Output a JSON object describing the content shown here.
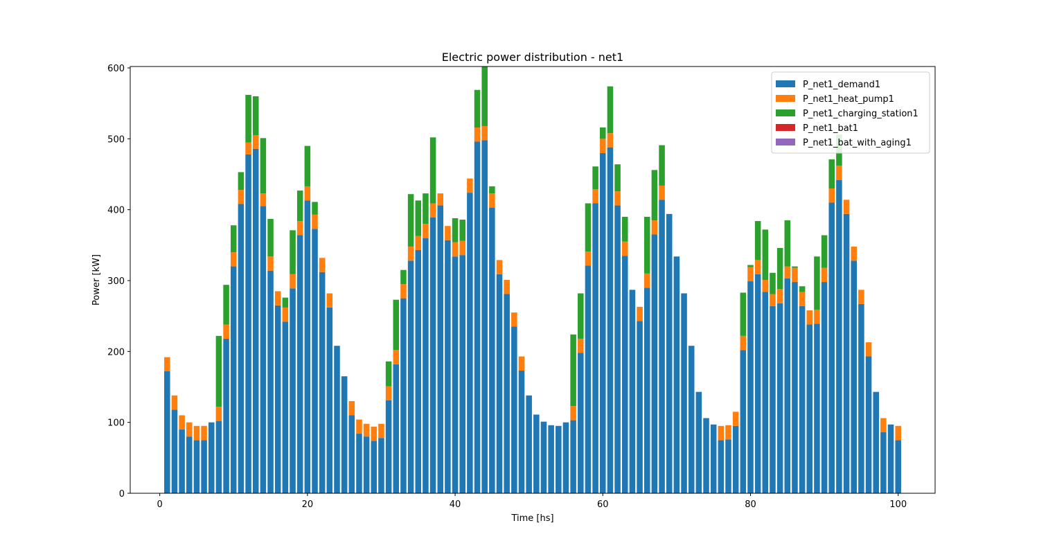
{
  "chart_data": {
    "type": "bar",
    "stacked": true,
    "title": "Electric power distribution - net1",
    "xlabel": "Time [hs]",
    "ylabel": "Power [kW]",
    "xlim": [
      -4,
      105
    ],
    "ylim": [
      0,
      602
    ],
    "xticks": [
      0,
      20,
      40,
      60,
      80,
      100
    ],
    "yticks": [
      0,
      100,
      200,
      300,
      400,
      500,
      600
    ],
    "legend_position": "top-right",
    "grid": false,
    "x": [
      1,
      2,
      3,
      4,
      5,
      6,
      7,
      8,
      9,
      10,
      11,
      12,
      13,
      14,
      15,
      16,
      17,
      18,
      19,
      20,
      21,
      22,
      23,
      24,
      25,
      26,
      27,
      28,
      29,
      30,
      31,
      32,
      33,
      34,
      35,
      36,
      37,
      38,
      39,
      40,
      41,
      42,
      43,
      44,
      45,
      46,
      47,
      48,
      49,
      50,
      51,
      52,
      53,
      54,
      55,
      56,
      57,
      58,
      59,
      60,
      61,
      62,
      63,
      64,
      65,
      66,
      67,
      68,
      69,
      70,
      71,
      72,
      73,
      74,
      75,
      76,
      77,
      78,
      79,
      80,
      81,
      82,
      83,
      84,
      85,
      86,
      87,
      88,
      89,
      90,
      91,
      92,
      93,
      94,
      95,
      96,
      97,
      98,
      99,
      100
    ],
    "series": [
      {
        "name": "P_net1_demand1",
        "color": "#1f77b4",
        "values": [
          172,
          118,
          90,
          80,
          75,
          75,
          100,
          102,
          218,
          320,
          408,
          478,
          486,
          405,
          314,
          265,
          242,
          289,
          364,
          413,
          373,
          312,
          262,
          208,
          165,
          110,
          84,
          80,
          74,
          78,
          131,
          182,
          275,
          328,
          343,
          360,
          389,
          406,
          357,
          334,
          336,
          424,
          496,
          498,
          403,
          309,
          281,
          235,
          173,
          138,
          111,
          101,
          96,
          95,
          100,
          103,
          198,
          321,
          409,
          480,
          488,
          406,
          335,
          287,
          243,
          290,
          365,
          414,
          394,
          334,
          282,
          208,
          143,
          106,
          97,
          75,
          76,
          95,
          202,
          299,
          309,
          284,
          264,
          268,
          303,
          298,
          264,
          238,
          239,
          298,
          410,
          442,
          394,
          328,
          267,
          193,
          143,
          86,
          97,
          75
        ]
      },
      {
        "name": "P_net1_heat_pump1",
        "color": "#ff7f0e",
        "values": [
          20,
          20,
          20,
          20,
          20,
          20,
          0,
          20,
          20,
          20,
          20,
          17,
          19,
          18,
          20,
          20,
          20,
          20,
          20,
          20,
          20,
          20,
          20,
          0,
          0,
          20,
          20,
          18,
          20,
          20,
          20,
          20,
          20,
          20,
          20,
          20,
          20,
          17,
          20,
          20,
          20,
          20,
          20,
          20,
          20,
          20,
          20,
          20,
          20,
          0,
          0,
          0,
          0,
          0,
          0,
          20,
          20,
          20,
          20,
          20,
          20,
          20,
          20,
          0,
          20,
          20,
          20,
          20,
          0,
          0,
          0,
          0,
          0,
          0,
          0,
          20,
          20,
          20,
          20,
          20,
          20,
          17,
          17,
          20,
          17,
          20,
          20,
          20,
          20,
          20,
          20,
          20,
          20,
          20,
          20,
          20,
          0,
          20,
          0,
          20
        ]
      },
      {
        "name": "P_net1_charging_station1",
        "color": "#2ca02c",
        "values": [
          0,
          0,
          0,
          0,
          0,
          0,
          0,
          100,
          56,
          38,
          25,
          67,
          55,
          78,
          53,
          0,
          14,
          62,
          43,
          57,
          18,
          0,
          0,
          0,
          0,
          0,
          0,
          0,
          0,
          0,
          35,
          71,
          20,
          74,
          50,
          43,
          93,
          0,
          0,
          34,
          30,
          0,
          53,
          85,
          10,
          0,
          0,
          0,
          0,
          0,
          0,
          0,
          0,
          0,
          0,
          101,
          64,
          68,
          32,
          16,
          66,
          38,
          35,
          0,
          0,
          80,
          71,
          57,
          0,
          0,
          0,
          0,
          0,
          0,
          0,
          0,
          0,
          0,
          61,
          3,
          55,
          71,
          30,
          58,
          65,
          2,
          8,
          0,
          75,
          46,
          41,
          44,
          0,
          0,
          0,
          0,
          0,
          0,
          0,
          0
        ]
      },
      {
        "name": "P_net1_bat1",
        "color": "#d62728",
        "values": [
          0,
          0,
          0,
          0,
          0,
          0,
          0,
          0,
          0,
          0,
          0,
          0,
          0,
          0,
          0,
          0,
          0,
          0,
          0,
          0,
          0,
          0,
          0,
          0,
          0,
          0,
          0,
          0,
          0,
          0,
          0,
          0,
          0,
          0,
          0,
          0,
          0,
          0,
          0,
          0,
          0,
          0,
          0,
          0,
          0,
          0,
          0,
          0,
          0,
          0,
          0,
          0,
          0,
          0,
          0,
          0,
          0,
          0,
          0,
          0,
          0,
          0,
          0,
          0,
          0,
          0,
          0,
          0,
          0,
          0,
          0,
          0,
          0,
          0,
          0,
          0,
          0,
          0,
          0,
          0,
          0,
          0,
          0,
          0,
          0,
          0,
          0,
          0,
          0,
          0,
          0,
          0,
          0,
          0,
          0,
          0,
          0,
          0,
          0,
          0
        ]
      },
      {
        "name": "P_net1_bat_with_aging1",
        "color": "#9467bd",
        "values": [
          0,
          0,
          0,
          0,
          0,
          0,
          0,
          0,
          0,
          0,
          0,
          0,
          0,
          0,
          0,
          0,
          0,
          0,
          0,
          0,
          0,
          0,
          0,
          0,
          0,
          0,
          0,
          0,
          0,
          0,
          0,
          0,
          0,
          0,
          0,
          0,
          0,
          0,
          0,
          0,
          0,
          0,
          0,
          0,
          0,
          0,
          0,
          0,
          0,
          0,
          0,
          0,
          0,
          0,
          0,
          0,
          0,
          0,
          0,
          0,
          0,
          0,
          0,
          0,
          0,
          0,
          0,
          0,
          0,
          0,
          0,
          0,
          0,
          0,
          0,
          0,
          0,
          0,
          0,
          0,
          0,
          0,
          0,
          0,
          0,
          0,
          0,
          0,
          0,
          0,
          0,
          0,
          0,
          0,
          0,
          0,
          0,
          0,
          0,
          0
        ]
      }
    ]
  }
}
